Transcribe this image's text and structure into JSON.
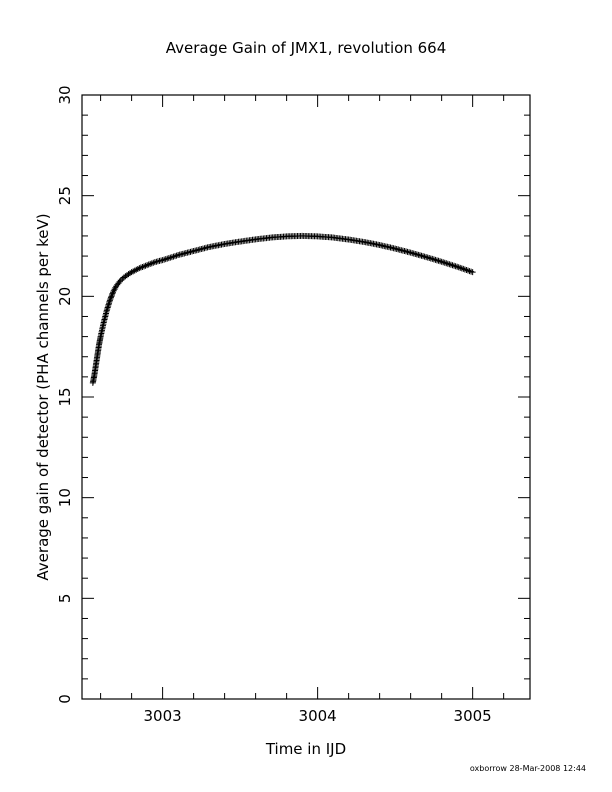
{
  "chart_data": {
    "type": "scatter",
    "title": "Average Gain of JMX1, revolution 664",
    "xlabel": "Time in IJD",
    "ylabel": "Average gain of detector (PHA channels per keV)",
    "xlim": [
      3002.48,
      3005.37
    ],
    "ylim": [
      0,
      30
    ],
    "xticks": [
      3003,
      3004,
      3005
    ],
    "xtick_labels": [
      "3003",
      "3004",
      "3005"
    ],
    "yticks": [
      0,
      5,
      10,
      15,
      20,
      25,
      30
    ],
    "ytick_labels": [
      "0",
      "5",
      "10",
      "15",
      "20",
      "25",
      "30"
    ],
    "marker": "+",
    "marker_color": "#000000",
    "grid": false,
    "series": [
      {
        "x": [
          3002.55,
          3002.56,
          3002.57,
          3002.58,
          3002.59,
          3002.6,
          3002.62,
          3002.64,
          3002.66,
          3002.68,
          3002.7,
          3002.73,
          3002.76,
          3002.8,
          3002.85,
          3002.9,
          3002.95,
          3003.0,
          3003.1,
          3003.2,
          3003.3,
          3003.4,
          3003.5,
          3003.6,
          3003.7,
          3003.8,
          3003.9,
          3004.0,
          3004.1,
          3004.2,
          3004.3,
          3004.4,
          3004.5,
          3004.6,
          3004.7,
          3004.8,
          3004.9,
          3005.0
        ],
        "y": [
          15.7,
          16.1,
          16.6,
          17.1,
          17.6,
          18.0,
          18.7,
          19.3,
          19.8,
          20.2,
          20.5,
          20.8,
          21.0,
          21.2,
          21.4,
          21.55,
          21.7,
          21.8,
          22.05,
          22.25,
          22.45,
          22.6,
          22.72,
          22.83,
          22.92,
          22.98,
          23.0,
          22.98,
          22.92,
          22.82,
          22.7,
          22.55,
          22.37,
          22.17,
          21.95,
          21.72,
          21.47,
          21.2
        ]
      }
    ],
    "footer": "oxborrow 28-Mar-2008 12:44"
  }
}
